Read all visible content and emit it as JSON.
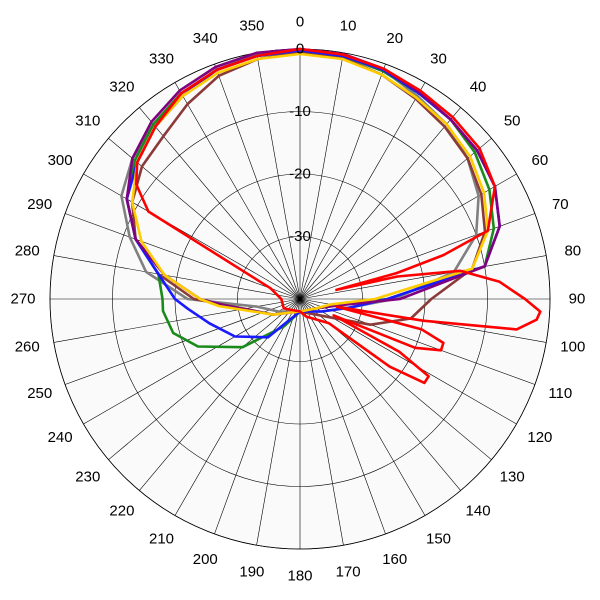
{
  "chart_data": {
    "type": "polar-line",
    "angle_labels": [
      "0",
      "10",
      "20",
      "30",
      "40",
      "50",
      "60",
      "70",
      "80",
      "90",
      "100",
      "110",
      "120",
      "130",
      "140",
      "150",
      "160",
      "170",
      "180",
      "190",
      "200",
      "210",
      "220",
      "230",
      "240",
      "250",
      "260",
      "270",
      "280",
      "290",
      "300",
      "310",
      "320",
      "330",
      "340",
      "350"
    ],
    "radial_labels": [
      "0",
      "-10",
      "-20",
      "-30"
    ],
    "r_range_db": [
      -40,
      0
    ],
    "angle_direction": "clockwise",
    "zero_at": "top",
    "grid": true,
    "series": [
      {
        "color": "#808080",
        "points": [
          [
            0,
            0
          ],
          [
            10,
            -0.3
          ],
          [
            20,
            -1
          ],
          [
            30,
            -2.5
          ],
          [
            40,
            -3.5
          ],
          [
            50,
            -5
          ],
          [
            60,
            -7
          ],
          [
            70,
            -10
          ],
          [
            80,
            -15
          ],
          [
            90,
            -25
          ],
          [
            100,
            -32
          ],
          [
            120,
            -36
          ],
          [
            180,
            -38
          ],
          [
            240,
            -36
          ],
          [
            260,
            -33
          ],
          [
            270,
            -22
          ],
          [
            280,
            -15
          ],
          [
            290,
            -11
          ],
          [
            300,
            -7
          ],
          [
            310,
            -5
          ],
          [
            320,
            -3.5
          ],
          [
            330,
            -2
          ],
          [
            340,
            -1
          ],
          [
            350,
            -0.3
          ],
          [
            360,
            0
          ]
        ]
      },
      {
        "color": "#8b3a3a",
        "points": [
          [
            0,
            -0.5
          ],
          [
            10,
            -0.8
          ],
          [
            20,
            -1.8
          ],
          [
            30,
            -3
          ],
          [
            40,
            -4
          ],
          [
            50,
            -5
          ],
          [
            60,
            -6.5
          ],
          [
            70,
            -8.5
          ],
          [
            80,
            -12
          ],
          [
            90,
            -19
          ],
          [
            100,
            -22
          ],
          [
            110,
            -28
          ],
          [
            120,
            -34
          ],
          [
            180,
            -38
          ],
          [
            240,
            -35
          ],
          [
            260,
            -31
          ],
          [
            270,
            -23
          ],
          [
            280,
            -17
          ],
          [
            290,
            -12
          ],
          [
            300,
            -9
          ],
          [
            310,
            -7
          ],
          [
            320,
            -6
          ],
          [
            330,
            -4
          ],
          [
            340,
            -2
          ],
          [
            350,
            -1
          ],
          [
            360,
            -0.5
          ]
        ]
      },
      {
        "color": "#1a8a1a",
        "points": [
          [
            0,
            -0.2
          ],
          [
            10,
            -0.5
          ],
          [
            20,
            -1.2
          ],
          [
            30,
            -2
          ],
          [
            40,
            -2.5
          ],
          [
            50,
            -3.5
          ],
          [
            60,
            -5
          ],
          [
            70,
            -7
          ],
          [
            80,
            -10
          ],
          [
            90,
            -26
          ],
          [
            100,
            -34
          ],
          [
            120,
            -37
          ],
          [
            180,
            -38
          ],
          [
            210,
            -35
          ],
          [
            230,
            -28
          ],
          [
            245,
            -22
          ],
          [
            255,
            -19
          ],
          [
            265,
            -18
          ],
          [
            270,
            -18
          ],
          [
            280,
            -17
          ],
          [
            290,
            -12
          ],
          [
            300,
            -8
          ],
          [
            310,
            -5.5
          ],
          [
            320,
            -3.5
          ],
          [
            330,
            -2
          ],
          [
            340,
            -1
          ],
          [
            350,
            -0.5
          ],
          [
            360,
            -0.2
          ]
        ]
      },
      {
        "color": "#1a1aff",
        "points": [
          [
            0,
            -0.2
          ],
          [
            10,
            -0.5
          ],
          [
            20,
            -1
          ],
          [
            30,
            -2
          ],
          [
            40,
            -2.5
          ],
          [
            50,
            -3
          ],
          [
            60,
            -4
          ],
          [
            70,
            -6
          ],
          [
            80,
            -10
          ],
          [
            90,
            -26
          ],
          [
            100,
            -32
          ],
          [
            120,
            -36
          ],
          [
            180,
            -38
          ],
          [
            220,
            -32
          ],
          [
            240,
            -28
          ],
          [
            255,
            -25
          ],
          [
            265,
            -22
          ],
          [
            270,
            -20
          ],
          [
            280,
            -17
          ],
          [
            290,
            -12
          ],
          [
            300,
            -8
          ],
          [
            310,
            -6
          ],
          [
            320,
            -4
          ],
          [
            330,
            -2.5
          ],
          [
            340,
            -1
          ],
          [
            350,
            -0.5
          ],
          [
            360,
            -0.2
          ]
        ]
      },
      {
        "color": "#800080",
        "points": [
          [
            0,
            0
          ],
          [
            10,
            -0.2
          ],
          [
            20,
            -0.8
          ],
          [
            30,
            -1.8
          ],
          [
            40,
            -2.5
          ],
          [
            50,
            -3
          ],
          [
            60,
            -4
          ],
          [
            70,
            -6
          ],
          [
            80,
            -10
          ],
          [
            90,
            -24
          ],
          [
            100,
            -34
          ],
          [
            120,
            -37
          ],
          [
            180,
            -38
          ],
          [
            240,
            -35
          ],
          [
            265,
            -28
          ],
          [
            270,
            -24
          ],
          [
            280,
            -18
          ],
          [
            290,
            -12
          ],
          [
            300,
            -8
          ],
          [
            310,
            -5
          ],
          [
            320,
            -3
          ],
          [
            330,
            -1.5
          ],
          [
            340,
            -0.5
          ],
          [
            350,
            0
          ],
          [
            360,
            0
          ]
        ]
      },
      {
        "color": "#ffcc00",
        "points": [
          [
            0,
            -0.8
          ],
          [
            10,
            -1
          ],
          [
            20,
            -1.8
          ],
          [
            30,
            -2.8
          ],
          [
            40,
            -3.5
          ],
          [
            50,
            -4.5
          ],
          [
            60,
            -6
          ],
          [
            70,
            -8
          ],
          [
            80,
            -12
          ],
          [
            90,
            -28
          ],
          [
            100,
            -35
          ],
          [
            120,
            -37
          ],
          [
            180,
            -38
          ],
          [
            240,
            -35
          ],
          [
            265,
            -27
          ],
          [
            270,
            -24
          ],
          [
            280,
            -18
          ],
          [
            290,
            -13
          ],
          [
            300,
            -9
          ],
          [
            310,
            -6
          ],
          [
            320,
            -4
          ],
          [
            330,
            -2.5
          ],
          [
            340,
            -1.5
          ],
          [
            350,
            -1
          ],
          [
            360,
            -0.8
          ]
        ]
      },
      {
        "color": "#ff0000",
        "points": [
          [
            0,
            0
          ],
          [
            10,
            -0.3
          ],
          [
            20,
            -0.8
          ],
          [
            30,
            -1.5
          ],
          [
            40,
            -2
          ],
          [
            50,
            -2.5
          ],
          [
            60,
            -4
          ],
          [
            70,
            -8
          ],
          [
            73,
            -16
          ],
          [
            75,
            -24
          ],
          [
            76,
            -34
          ],
          [
            77,
            -24
          ],
          [
            80,
            -14
          ],
          [
            85,
            -8
          ],
          [
            90,
            -4
          ],
          [
            93,
            -1.5
          ],
          [
            95,
            -2
          ],
          [
            98,
            -5
          ],
          [
            100,
            -20
          ],
          [
            102,
            -34
          ],
          [
            104,
            -20
          ],
          [
            107,
            -16
          ],
          [
            110,
            -16
          ],
          [
            113,
            -20
          ],
          [
            116,
            -34
          ],
          [
            118,
            -22
          ],
          [
            121,
            -16
          ],
          [
            124,
            -16
          ],
          [
            127,
            -22
          ],
          [
            130,
            -34
          ],
          [
            160,
            -37
          ],
          [
            180,
            -38
          ],
          [
            240,
            -37
          ],
          [
            270,
            -37
          ],
          [
            290,
            -35
          ],
          [
            300,
            -12
          ],
          [
            305,
            -8
          ],
          [
            310,
            -6
          ],
          [
            320,
            -4
          ],
          [
            330,
            -2
          ],
          [
            340,
            -1
          ],
          [
            350,
            -0.5
          ],
          [
            360,
            0
          ]
        ]
      }
    ]
  }
}
